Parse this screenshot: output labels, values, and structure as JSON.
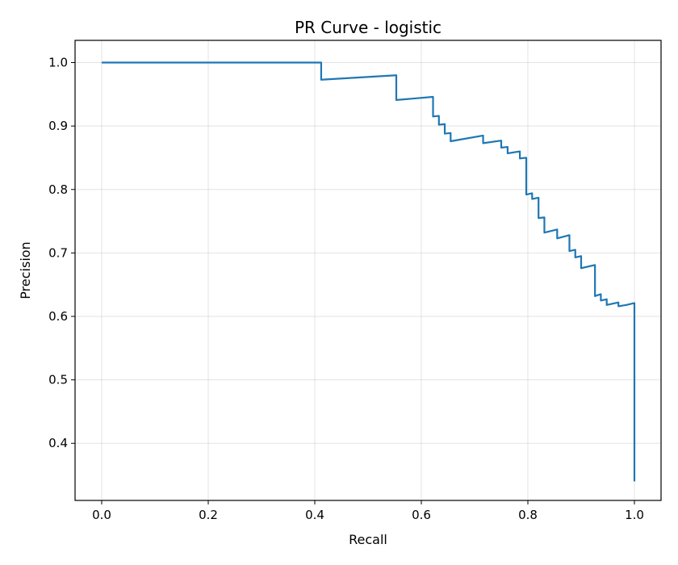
{
  "chart_data": {
    "type": "line",
    "title": "PR Curve - logistic",
    "xlabel": "Recall",
    "ylabel": "Precision",
    "xlim": [
      -0.05,
      1.05
    ],
    "ylim": [
      0.31,
      1.035
    ],
    "xticks": [
      0.0,
      0.2,
      0.4,
      0.6,
      0.8,
      1.0
    ],
    "xtick_labels": [
      "0.0",
      "0.2",
      "0.4",
      "0.6",
      "0.8",
      "1.0"
    ],
    "yticks": [
      0.4,
      0.5,
      0.6,
      0.7,
      0.8,
      0.9,
      1.0
    ],
    "ytick_labels": [
      "0.4",
      "0.5",
      "0.6",
      "0.7",
      "0.8",
      "0.9",
      "1.0"
    ],
    "grid": true,
    "series": [
      {
        "color": "#1f77b4",
        "points": [
          [
            0.0,
            1.0
          ],
          [
            0.412,
            1.0
          ],
          [
            0.412,
            0.973
          ],
          [
            0.553,
            0.98
          ],
          [
            0.553,
            0.941
          ],
          [
            0.622,
            0.946
          ],
          [
            0.622,
            0.915
          ],
          [
            0.633,
            0.916
          ],
          [
            0.633,
            0.902
          ],
          [
            0.644,
            0.903
          ],
          [
            0.644,
            0.888
          ],
          [
            0.655,
            0.889
          ],
          [
            0.655,
            0.876
          ],
          [
            0.716,
            0.885
          ],
          [
            0.716,
            0.873
          ],
          [
            0.75,
            0.877
          ],
          [
            0.75,
            0.866
          ],
          [
            0.762,
            0.867
          ],
          [
            0.762,
            0.857
          ],
          [
            0.785,
            0.86
          ],
          [
            0.785,
            0.849
          ],
          [
            0.797,
            0.85
          ],
          [
            0.797,
            0.792
          ],
          [
            0.808,
            0.794
          ],
          [
            0.808,
            0.785
          ],
          [
            0.82,
            0.787
          ],
          [
            0.82,
            0.755
          ],
          [
            0.831,
            0.756
          ],
          [
            0.831,
            0.732
          ],
          [
            0.855,
            0.737
          ],
          [
            0.855,
            0.723
          ],
          [
            0.878,
            0.728
          ],
          [
            0.878,
            0.703
          ],
          [
            0.889,
            0.705
          ],
          [
            0.889,
            0.693
          ],
          [
            0.9,
            0.695
          ],
          [
            0.9,
            0.676
          ],
          [
            0.926,
            0.681
          ],
          [
            0.926,
            0.632
          ],
          [
            0.937,
            0.635
          ],
          [
            0.937,
            0.625
          ],
          [
            0.948,
            0.627
          ],
          [
            0.948,
            0.618
          ],
          [
            0.97,
            0.622
          ],
          [
            0.97,
            0.616
          ],
          [
            0.985,
            0.618
          ],
          [
            1.0,
            0.621
          ],
          [
            1.0,
            0.34
          ]
        ]
      }
    ]
  }
}
